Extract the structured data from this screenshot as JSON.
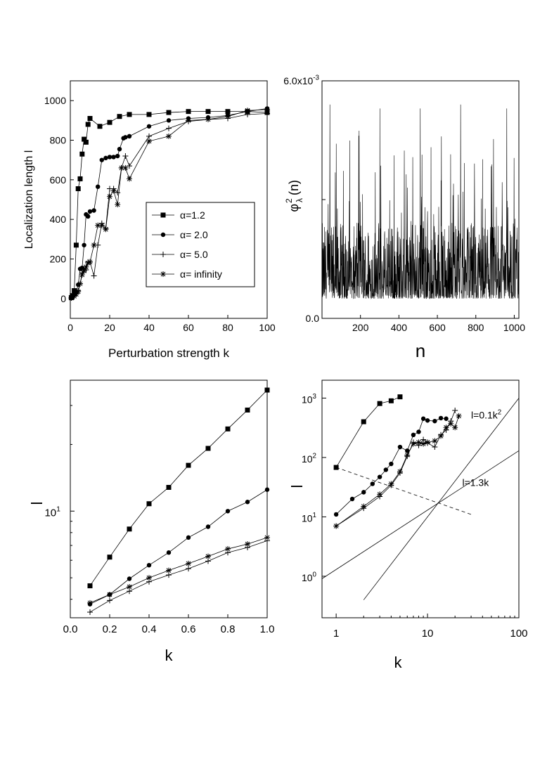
{
  "chart_data": [
    {
      "id": "p1",
      "type": "line",
      "xlabel": "Perturbation strength k",
      "ylabel": "Localization length l",
      "xlim": [
        0,
        100
      ],
      "ylim": [
        -100,
        1100
      ],
      "xticks": [
        0,
        20,
        40,
        60,
        80,
        100
      ],
      "yticks": [
        0,
        200,
        400,
        600,
        800,
        1000
      ],
      "legend_position": "center",
      "series": [
        {
          "name": "α=1.2",
          "marker": "square",
          "x": [
            0.5,
            1,
            2,
            3,
            4,
            5,
            6,
            7,
            8,
            9,
            10,
            15,
            20,
            25,
            30,
            40,
            50,
            60,
            70,
            80,
            90,
            100
          ],
          "y": [
            5,
            15,
            40,
            270,
            555,
            605,
            730,
            805,
            790,
            880,
            910,
            870,
            890,
            920,
            930,
            930,
            940,
            945,
            945,
            945,
            945,
            940
          ]
        },
        {
          "name": "α= 2.0",
          "marker": "circle",
          "x": [
            0.5,
            1,
            2,
            3,
            4,
            5,
            6,
            7,
            8,
            9,
            10,
            12,
            14,
            16,
            18,
            20,
            22,
            24,
            25,
            27,
            28,
            30,
            40,
            50,
            60,
            70,
            80,
            90,
            100
          ],
          "y": [
            5,
            10,
            20,
            35,
            70,
            150,
            155,
            270,
            425,
            415,
            440,
            445,
            565,
            700,
            710,
            715,
            715,
            720,
            755,
            810,
            815,
            820,
            870,
            900,
            910,
            915,
            925,
            945,
            960
          ]
        },
        {
          "name": "α= 5.0",
          "marker": "plus",
          "x": [
            0.5,
            1,
            2,
            3,
            4,
            5,
            6,
            7,
            8,
            9,
            10,
            12,
            14,
            16,
            18,
            20,
            22,
            24,
            26,
            28,
            30,
            40,
            50,
            60,
            70,
            80,
            90,
            100
          ],
          "y": [
            3,
            8,
            15,
            25,
            40,
            75,
            130,
            150,
            145,
            185,
            185,
            115,
            270,
            380,
            355,
            555,
            555,
            535,
            660,
            720,
            670,
            820,
            860,
            895,
            905,
            910,
            930,
            935
          ]
        },
        {
          "name": "α= infinity",
          "marker": "star",
          "x": [
            0.5,
            1,
            2,
            3,
            4,
            5,
            6,
            7,
            8,
            9,
            10,
            12,
            14,
            16,
            18,
            20,
            22,
            24,
            26,
            28,
            30,
            40,
            50,
            60,
            70,
            80,
            90,
            100
          ],
          "y": [
            3,
            6,
            12,
            22,
            35,
            75,
            120,
            140,
            160,
            180,
            185,
            270,
            370,
            370,
            350,
            515,
            545,
            475,
            660,
            660,
            605,
            795,
            820,
            900,
            905,
            920,
            950,
            955
          ]
        }
      ]
    },
    {
      "id": "p2",
      "type": "line",
      "xlabel": "n",
      "ylabel": "φλ²(n)",
      "ylabel_base": "φ",
      "ylabel_sub": "λ",
      "ylabel_sup": "2",
      "ylabel_tail": "(n)",
      "xlim": [
        0,
        1024
      ],
      "ylim": [
        0,
        0.006
      ],
      "xticks": [
        200,
        400,
        600,
        800,
        1000
      ],
      "ytick_labels": [
        {
          "value": 0,
          "label": "0.0"
        },
        {
          "value": 0.006,
          "label": "6.0x10",
          "exponent": "-3"
        }
      ],
      "n_points": 1024,
      "seed": 12345,
      "baseline": 0.0005,
      "noise_scale": 0.0012,
      "peaks": [
        {
          "n": 40,
          "y": 0.0054
        },
        {
          "n": 300,
          "y": 0.0053
        },
        {
          "n": 510,
          "y": 0.0053
        },
        {
          "n": 720,
          "y": 0.0054
        },
        {
          "n": 960,
          "y": 0.0053
        }
      ]
    },
    {
      "id": "p3",
      "type": "line",
      "xlabel": "k",
      "ylabel": "l",
      "yscale": "log",
      "xlim": [
        0,
        1
      ],
      "ylim": [
        3.3,
        39
      ],
      "xticks": [
        0.0,
        0.2,
        0.4,
        0.6,
        0.8,
        1.0
      ],
      "ytick_labels": [
        {
          "value": 10,
          "label": "10",
          "exponent": "1"
        }
      ],
      "series": [
        {
          "name": "α=1.2",
          "marker": "square",
          "x": [
            0.1,
            0.2,
            0.3,
            0.4,
            0.5,
            0.6,
            0.7,
            0.8,
            0.9,
            1.0
          ],
          "y": [
            4.6,
            6.2,
            8.3,
            10.8,
            12.8,
            16.1,
            19.2,
            23.5,
            28.6,
            35.2
          ]
        },
        {
          "name": "α= 2.0",
          "marker": "circle",
          "x": [
            0.1,
            0.2,
            0.3,
            0.4,
            0.5,
            0.6,
            0.7,
            0.8,
            0.9,
            1.0
          ],
          "y": [
            3.8,
            4.2,
            4.95,
            5.7,
            6.5,
            7.6,
            8.5,
            10.0,
            11.0,
            12.5
          ]
        },
        {
          "name": "α= 5.0",
          "marker": "plus",
          "x": [
            0.1,
            0.2,
            0.3,
            0.4,
            0.5,
            0.6,
            0.7,
            0.8,
            0.9,
            1.0
          ],
          "y": [
            3.5,
            3.95,
            4.35,
            4.8,
            5.15,
            5.5,
            5.95,
            6.5,
            6.85,
            7.35
          ]
        },
        {
          "name": "α= infinity",
          "marker": "star",
          "x": [
            0.1,
            0.2,
            0.3,
            0.4,
            0.5,
            0.6,
            0.7,
            0.8,
            0.9,
            1.0
          ],
          "y": [
            3.85,
            4.2,
            4.55,
            5.0,
            5.4,
            5.8,
            6.25,
            6.75,
            7.1,
            7.6
          ]
        }
      ]
    },
    {
      "id": "p4",
      "type": "line",
      "xlabel": "k",
      "ylabel": "l",
      "xscale": "log",
      "yscale": "log",
      "xlim": [
        0.7,
        100
      ],
      "ylim": [
        0.2,
        2000
      ],
      "xtick_labels": [
        {
          "value": 1,
          "label": "1"
        },
        {
          "value": 10,
          "label": "10"
        },
        {
          "value": 100,
          "label": "100"
        }
      ],
      "ytick_labels": [
        {
          "value": 1,
          "label": "10",
          "exponent": "0"
        },
        {
          "value": 10,
          "label": "10",
          "exponent": "1"
        },
        {
          "value": 100,
          "label": "10",
          "exponent": "2"
        },
        {
          "value": 1000,
          "label": "10",
          "exponent": "3"
        }
      ],
      "series": [
        {
          "name": "α=1.2",
          "marker": "square",
          "x": [
            1,
            2,
            3,
            4,
            5
          ],
          "y": [
            68,
            400,
            810,
            900,
            1050
          ]
        },
        {
          "name": "α= 2.0",
          "marker": "circle",
          "x": [
            1,
            1.5,
            2,
            2.5,
            3,
            3.5,
            4,
            5,
            6,
            7,
            8,
            9,
            10,
            12,
            14,
            16
          ],
          "y": [
            11,
            20,
            26,
            36,
            47,
            62,
            78,
            150,
            130,
            240,
            270,
            450,
            420,
            410,
            460,
            450
          ]
        },
        {
          "name": "α= 5.0",
          "marker": "plus",
          "x": [
            1,
            2,
            3,
            4,
            5,
            6,
            7,
            8,
            9,
            10,
            12,
            14,
            16,
            18,
            20
          ],
          "y": [
            7,
            14,
            22,
            34,
            55,
            105,
            180,
            160,
            200,
            175,
            150,
            240,
            290,
            410,
            620
          ]
        },
        {
          "name": "α= infinity",
          "marker": "star",
          "x": [
            1,
            2,
            3,
            4,
            5,
            6,
            7,
            8,
            9,
            10,
            12,
            14,
            16,
            18,
            20,
            22
          ],
          "y": [
            7,
            15,
            24,
            36,
            58,
            110,
            170,
            180,
            170,
            180,
            190,
            230,
            320,
            370,
            320,
            500
          ]
        }
      ],
      "reference_lines": [
        {
          "label": "l=0.1k",
          "exponent": "2",
          "coef": 0.1,
          "power": 2,
          "kmin": 2,
          "kmax": 100,
          "label_at": [
            30,
            450
          ],
          "style": "solid"
        },
        {
          "label": "l=1.3k",
          "exponent": "",
          "coef": 1.3,
          "power": 1,
          "kmin": 0.7,
          "kmax": 100,
          "label_at": [
            24,
            33
          ],
          "style": "solid"
        },
        {
          "label": "",
          "exponent": "",
          "k_start": 1,
          "l_start": 68,
          "k_end": 30,
          "l_end": 11,
          "style": "dashed"
        }
      ]
    }
  ]
}
